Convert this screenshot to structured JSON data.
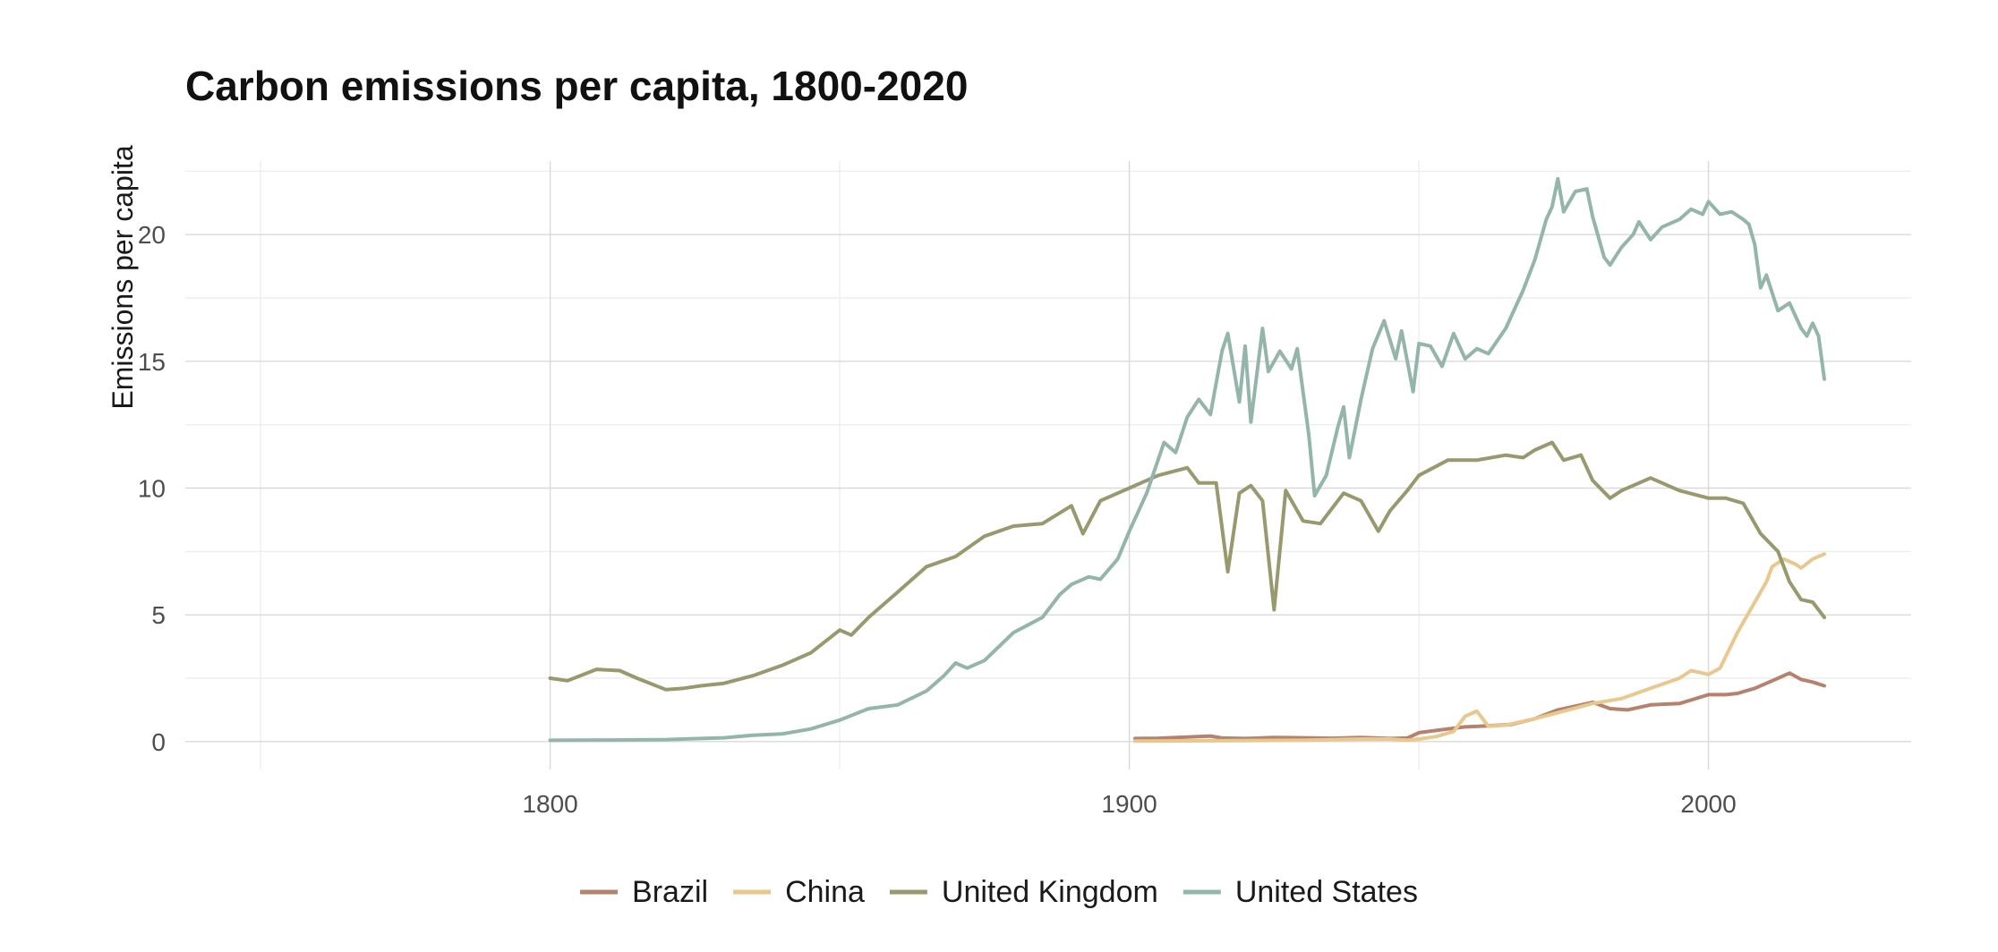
{
  "chart_data": {
    "type": "line",
    "title": "Carbon emissions per capita, 1800-2020",
    "xlabel": "",
    "ylabel": "Emissions per capita",
    "xlim": [
      1737,
      2035
    ],
    "ylim": [
      -1.1,
      22.9
    ],
    "x_ticks": [
      1800,
      1900,
      2000
    ],
    "y_ticks": [
      0,
      5,
      10,
      15,
      20
    ],
    "grid": true,
    "legend": "bottom",
    "series": [
      {
        "name": "Brazil",
        "color": "#b5826d",
        "points": [
          [
            1901,
            0.12
          ],
          [
            1905,
            0.13
          ],
          [
            1910,
            0.18
          ],
          [
            1914,
            0.22
          ],
          [
            1916,
            0.14
          ],
          [
            1920,
            0.12
          ],
          [
            1925,
            0.16
          ],
          [
            1930,
            0.15
          ],
          [
            1935,
            0.13
          ],
          [
            1940,
            0.16
          ],
          [
            1945,
            0.12
          ],
          [
            1948,
            0.14
          ],
          [
            1950,
            0.35
          ],
          [
            1955,
            0.5
          ],
          [
            1958,
            0.58
          ],
          [
            1962,
            0.62
          ],
          [
            1966,
            0.68
          ],
          [
            1970,
            0.9
          ],
          [
            1974,
            1.25
          ],
          [
            1978,
            1.45
          ],
          [
            1980,
            1.55
          ],
          [
            1983,
            1.3
          ],
          [
            1986,
            1.25
          ],
          [
            1990,
            1.45
          ],
          [
            1995,
            1.5
          ],
          [
            2000,
            1.85
          ],
          [
            2003,
            1.85
          ],
          [
            2005,
            1.9
          ],
          [
            2008,
            2.1
          ],
          [
            2010,
            2.3
          ],
          [
            2014,
            2.7
          ],
          [
            2016,
            2.45
          ],
          [
            2018,
            2.35
          ],
          [
            2020,
            2.2
          ]
        ]
      },
      {
        "name": "China",
        "color": "#e8c88e",
        "points": [
          [
            1901,
            0.02
          ],
          [
            1910,
            0.03
          ],
          [
            1920,
            0.04
          ],
          [
            1930,
            0.05
          ],
          [
            1940,
            0.1
          ],
          [
            1945,
            0.1
          ],
          [
            1948,
            0.05
          ],
          [
            1950,
            0.1
          ],
          [
            1953,
            0.2
          ],
          [
            1956,
            0.4
          ],
          [
            1958,
            1.0
          ],
          [
            1960,
            1.2
          ],
          [
            1962,
            0.6
          ],
          [
            1965,
            0.65
          ],
          [
            1970,
            0.9
          ],
          [
            1975,
            1.2
          ],
          [
            1980,
            1.5
          ],
          [
            1985,
            1.7
          ],
          [
            1990,
            2.1
          ],
          [
            1995,
            2.5
          ],
          [
            1997,
            2.8
          ],
          [
            2000,
            2.65
          ],
          [
            2002,
            2.9
          ],
          [
            2005,
            4.3
          ],
          [
            2008,
            5.5
          ],
          [
            2010,
            6.3
          ],
          [
            2011,
            6.9
          ],
          [
            2013,
            7.2
          ],
          [
            2015,
            7.0
          ],
          [
            2016,
            6.85
          ],
          [
            2018,
            7.2
          ],
          [
            2020,
            7.4
          ]
        ]
      },
      {
        "name": "United Kingdom",
        "color": "#99996f",
        "points": [
          [
            1800,
            2.5
          ],
          [
            1803,
            2.4
          ],
          [
            1808,
            2.85
          ],
          [
            1812,
            2.8
          ],
          [
            1815,
            2.5
          ],
          [
            1820,
            2.05
          ],
          [
            1823,
            2.1
          ],
          [
            1826,
            2.2
          ],
          [
            1830,
            2.3
          ],
          [
            1835,
            2.6
          ],
          [
            1840,
            3.0
          ],
          [
            1845,
            3.5
          ],
          [
            1850,
            4.4
          ],
          [
            1852,
            4.2
          ],
          [
            1855,
            4.9
          ],
          [
            1860,
            5.9
          ],
          [
            1865,
            6.9
          ],
          [
            1870,
            7.3
          ],
          [
            1875,
            8.1
          ],
          [
            1880,
            8.5
          ],
          [
            1885,
            8.6
          ],
          [
            1890,
            9.3
          ],
          [
            1892,
            8.2
          ],
          [
            1895,
            9.5
          ],
          [
            1900,
            10.0
          ],
          [
            1905,
            10.5
          ],
          [
            1910,
            10.8
          ],
          [
            1912,
            10.2
          ],
          [
            1915,
            10.2
          ],
          [
            1917,
            6.7
          ],
          [
            1919,
            9.8
          ],
          [
            1921,
            10.1
          ],
          [
            1923,
            9.5
          ],
          [
            1925,
            5.2
          ],
          [
            1927,
            9.9
          ],
          [
            1930,
            8.7
          ],
          [
            1933,
            8.6
          ],
          [
            1937,
            9.8
          ],
          [
            1940,
            9.5
          ],
          [
            1943,
            8.3
          ],
          [
            1945,
            9.1
          ],
          [
            1948,
            9.9
          ],
          [
            1950,
            10.5
          ],
          [
            1955,
            11.1
          ],
          [
            1960,
            11.1
          ],
          [
            1965,
            11.3
          ],
          [
            1968,
            11.2
          ],
          [
            1970,
            11.5
          ],
          [
            1973,
            11.8
          ],
          [
            1975,
            11.1
          ],
          [
            1978,
            11.3
          ],
          [
            1980,
            10.3
          ],
          [
            1983,
            9.6
          ],
          [
            1985,
            9.9
          ],
          [
            1990,
            10.4
          ],
          [
            1995,
            9.9
          ],
          [
            2000,
            9.6
          ],
          [
            2003,
            9.6
          ],
          [
            2006,
            9.4
          ],
          [
            2009,
            8.2
          ],
          [
            2012,
            7.5
          ],
          [
            2014,
            6.3
          ],
          [
            2016,
            5.6
          ],
          [
            2018,
            5.5
          ],
          [
            2020,
            4.9
          ]
        ]
      },
      {
        "name": "United States",
        "color": "#94b5ab",
        "points": [
          [
            1800,
            0.05
          ],
          [
            1810,
            0.06
          ],
          [
            1820,
            0.08
          ],
          [
            1830,
            0.15
          ],
          [
            1835,
            0.25
          ],
          [
            1840,
            0.3
          ],
          [
            1845,
            0.5
          ],
          [
            1850,
            0.85
          ],
          [
            1855,
            1.3
          ],
          [
            1860,
            1.45
          ],
          [
            1865,
            2.0
          ],
          [
            1868,
            2.6
          ],
          [
            1870,
            3.1
          ],
          [
            1872,
            2.9
          ],
          [
            1875,
            3.2
          ],
          [
            1880,
            4.3
          ],
          [
            1885,
            4.9
          ],
          [
            1888,
            5.8
          ],
          [
            1890,
            6.2
          ],
          [
            1893,
            6.5
          ],
          [
            1895,
            6.4
          ],
          [
            1898,
            7.2
          ],
          [
            1900,
            8.3
          ],
          [
            1903,
            9.8
          ],
          [
            1906,
            11.8
          ],
          [
            1908,
            11.4
          ],
          [
            1910,
            12.8
          ],
          [
            1912,
            13.5
          ],
          [
            1914,
            12.9
          ],
          [
            1916,
            15.4
          ],
          [
            1917,
            16.1
          ],
          [
            1919,
            13.4
          ],
          [
            1920,
            15.6
          ],
          [
            1921,
            12.6
          ],
          [
            1923,
            16.3
          ],
          [
            1924,
            14.6
          ],
          [
            1926,
            15.4
          ],
          [
            1928,
            14.7
          ],
          [
            1929,
            15.5
          ],
          [
            1931,
            12.1
          ],
          [
            1932,
            9.7
          ],
          [
            1934,
            10.5
          ],
          [
            1936,
            12.4
          ],
          [
            1937,
            13.2
          ],
          [
            1938,
            11.2
          ],
          [
            1940,
            13.5
          ],
          [
            1942,
            15.5
          ],
          [
            1944,
            16.6
          ],
          [
            1946,
            15.1
          ],
          [
            1947,
            16.2
          ],
          [
            1949,
            13.8
          ],
          [
            1950,
            15.7
          ],
          [
            1952,
            15.6
          ],
          [
            1954,
            14.8
          ],
          [
            1956,
            16.1
          ],
          [
            1958,
            15.1
          ],
          [
            1960,
            15.5
          ],
          [
            1962,
            15.3
          ],
          [
            1965,
            16.3
          ],
          [
            1968,
            17.8
          ],
          [
            1970,
            19.0
          ],
          [
            1972,
            20.6
          ],
          [
            1973,
            21.1
          ],
          [
            1974,
            22.2
          ],
          [
            1975,
            20.9
          ],
          [
            1977,
            21.7
          ],
          [
            1979,
            21.8
          ],
          [
            1980,
            20.7
          ],
          [
            1982,
            19.1
          ],
          [
            1983,
            18.8
          ],
          [
            1985,
            19.5
          ],
          [
            1987,
            20.0
          ],
          [
            1988,
            20.5
          ],
          [
            1990,
            19.8
          ],
          [
            1992,
            20.3
          ],
          [
            1995,
            20.6
          ],
          [
            1997,
            21.0
          ],
          [
            1999,
            20.8
          ],
          [
            2000,
            21.3
          ],
          [
            2002,
            20.8
          ],
          [
            2004,
            20.9
          ],
          [
            2006,
            20.6
          ],
          [
            2007,
            20.4
          ],
          [
            2008,
            19.6
          ],
          [
            2009,
            17.9
          ],
          [
            2010,
            18.4
          ],
          [
            2012,
            17.0
          ],
          [
            2014,
            17.3
          ],
          [
            2016,
            16.3
          ],
          [
            2017,
            16.0
          ],
          [
            2018,
            16.5
          ],
          [
            2019,
            16.0
          ],
          [
            2020,
            14.3
          ]
        ]
      }
    ]
  }
}
